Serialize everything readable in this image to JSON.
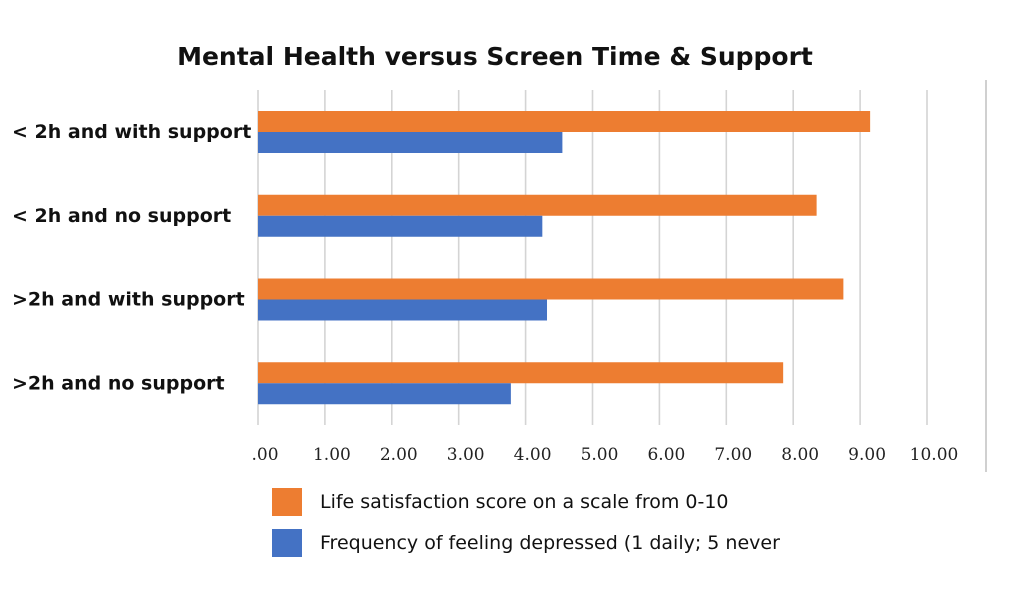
{
  "chart_data": {
    "type": "bar",
    "orientation": "horizontal",
    "title": "Mental Health versus Screen Time & Support",
    "categories": [
      "< 2h and with support",
      "< 2h and no support",
      ">2h and with support",
      ">2h and no support"
    ],
    "series": [
      {
        "name": "Life satisfaction score on a scale from 0-10",
        "color": "#ED7D31",
        "values": [
          9.15,
          8.35,
          8.75,
          7.85
        ]
      },
      {
        "name": "Frequency of feeling depressed (1 daily; 5 never",
        "color": "#4472C4",
        "values": [
          4.55,
          4.25,
          4.32,
          3.78
        ]
      }
    ],
    "xlim": [
      0,
      10
    ],
    "xticks": [
      ".00",
      "1.00",
      "2.00",
      "3.00",
      "4.00",
      "5.00",
      "6.00",
      "7.00",
      "8.00",
      "9.00",
      "10.00"
    ],
    "grid": true,
    "legend_position": "bottom"
  }
}
